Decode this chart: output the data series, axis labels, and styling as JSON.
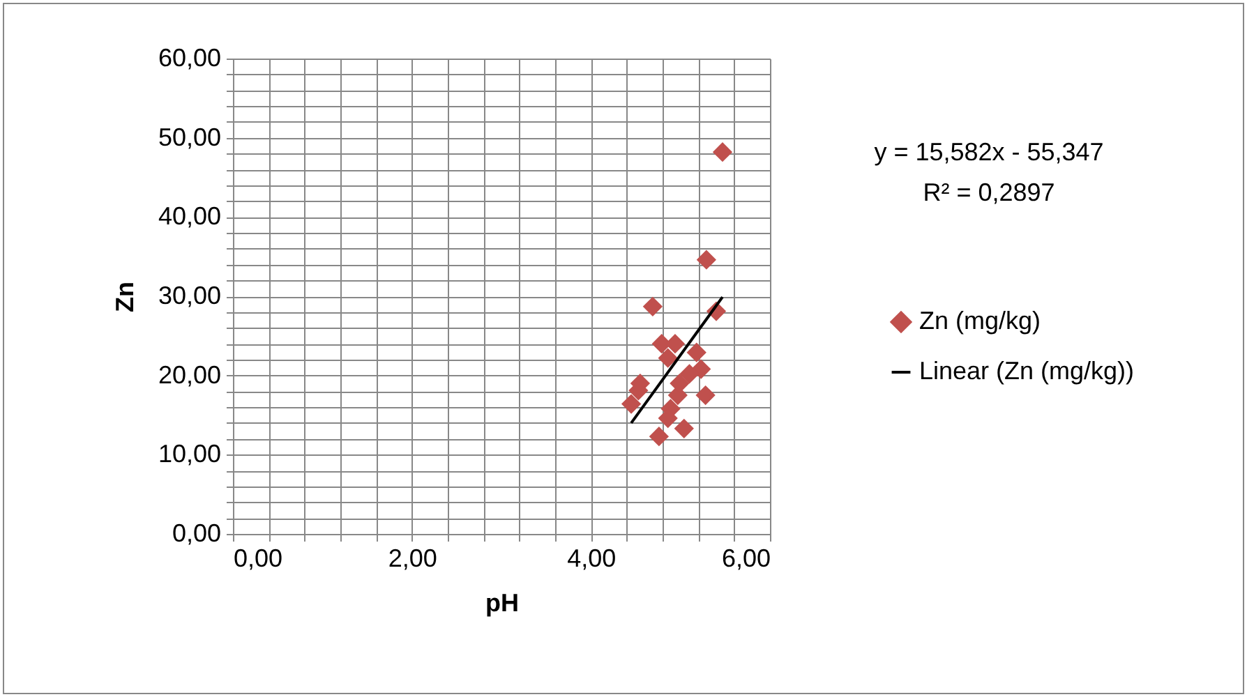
{
  "chart_data": {
    "type": "scatter",
    "xlabel": "pH",
    "ylabel": "Zn",
    "grid": true,
    "legend": "right",
    "annotations": [
      "y = 15,582x - 55,347",
      "R² = 0,2897"
    ],
    "xlim": [
      0,
      6
    ],
    "ylim": [
      0,
      60
    ],
    "xticks": [
      {
        "value": 0,
        "label": "0,00"
      },
      {
        "value": 0.4,
        "label": null
      },
      {
        "value": 0.8,
        "label": null
      },
      {
        "value": 1.2,
        "label": null
      },
      {
        "value": 1.6,
        "label": null
      },
      {
        "value": 2,
        "label": "2,00"
      },
      {
        "value": 2.4,
        "label": null
      },
      {
        "value": 2.8,
        "label": null
      },
      {
        "value": 3.2,
        "label": null
      },
      {
        "value": 3.6,
        "label": null
      },
      {
        "value": 4,
        "label": "4,00"
      },
      {
        "value": 4.4,
        "label": null
      },
      {
        "value": 4.8,
        "label": null
      },
      {
        "value": 5.2,
        "label": null
      },
      {
        "value": 5.6,
        "label": null
      },
      {
        "value": 6,
        "label": "6,00"
      }
    ],
    "yticks": [
      {
        "value": 0,
        "label": "0,00"
      },
      {
        "value": 2,
        "label": null
      },
      {
        "value": 4,
        "label": null
      },
      {
        "value": 6,
        "label": null
      },
      {
        "value": 8,
        "label": null
      },
      {
        "value": 10,
        "label": "10,00"
      },
      {
        "value": 12,
        "label": null
      },
      {
        "value": 14,
        "label": null
      },
      {
        "value": 16,
        "label": null
      },
      {
        "value": 18,
        "label": null
      },
      {
        "value": 20,
        "label": "20,00"
      },
      {
        "value": 22,
        "label": null
      },
      {
        "value": 24,
        "label": null
      },
      {
        "value": 26,
        "label": null
      },
      {
        "value": 28,
        "label": null
      },
      {
        "value": 30,
        "label": "30,00"
      },
      {
        "value": 32,
        "label": null
      },
      {
        "value": 34,
        "label": null
      },
      {
        "value": 36,
        "label": null
      },
      {
        "value": 38,
        "label": null
      },
      {
        "value": 40,
        "label": "40,00"
      },
      {
        "value": 42,
        "label": null
      },
      {
        "value": 44,
        "label": null
      },
      {
        "value": 46,
        "label": null
      },
      {
        "value": 48,
        "label": null
      },
      {
        "value": 50,
        "label": "50,00"
      },
      {
        "value": 52,
        "label": null
      },
      {
        "value": 54,
        "label": null
      },
      {
        "value": 56,
        "label": null
      },
      {
        "value": 58,
        "label": null
      },
      {
        "value": 60,
        "label": "60,00"
      }
    ],
    "series": [
      {
        "name": "Zn (mg/kg)",
        "marker": "diamond",
        "color": "#c0504d",
        "x": [
          5.47,
          5.29,
          4.69,
          5.4,
          4.79,
          4.94,
          4.86,
          5.18,
          5.23,
          5.1,
          4.55,
          4.53,
          5.28,
          4.97,
          4.45,
          4.89,
          4.86,
          5.04,
          4.76,
          4.99
        ],
        "values": [
          48.2,
          34.6,
          28.7,
          28.1,
          24.0,
          24.0,
          22.2,
          22.9,
          20.8,
          20.2,
          19.0,
          18.1,
          17.5,
          17.5,
          16.4,
          15.8,
          14.6,
          13.3,
          12.3,
          19.0
        ]
      },
      {
        "name": "Linear (Zn (mg/kg))",
        "type": "line",
        "color": "#000000",
        "line_style": "solid",
        "x": [
          4.45,
          5.47
        ],
        "values": [
          14.0,
          29.9
        ]
      }
    ]
  }
}
